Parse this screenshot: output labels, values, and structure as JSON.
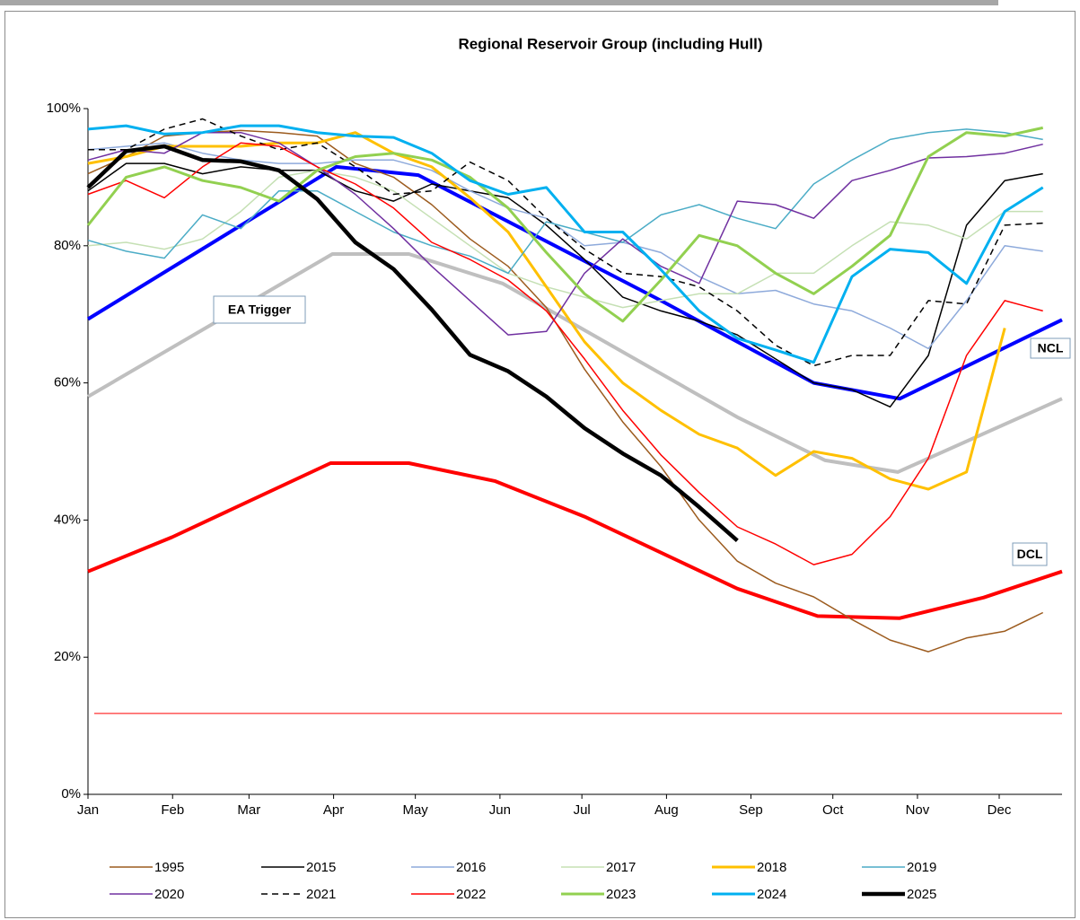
{
  "chart_data": {
    "type": "line",
    "title": "Regional Reservoir Group (including Hull)",
    "x": [
      0,
      2,
      4,
      6,
      8,
      10,
      12,
      14,
      16,
      18,
      20,
      22,
      24,
      26,
      28,
      30,
      32,
      34,
      36,
      38,
      40,
      42,
      44,
      46,
      48,
      50
    ],
    "xlim": [
      0,
      51
    ],
    "xticks": [
      {
        "value": 0,
        "label": "Jan"
      },
      {
        "value": 4.43,
        "label": "Feb"
      },
      {
        "value": 8.43,
        "label": "Mar"
      },
      {
        "value": 12.86,
        "label": "Apr"
      },
      {
        "value": 17.14,
        "label": "May"
      },
      {
        "value": 21.57,
        "label": "Jun"
      },
      {
        "value": 25.86,
        "label": "Jul"
      },
      {
        "value": 30.29,
        "label": "Aug"
      },
      {
        "value": 34.71,
        "label": "Sep"
      },
      {
        "value": 39,
        "label": "Oct"
      },
      {
        "value": 43.43,
        "label": "Nov"
      },
      {
        "value": 47.71,
        "label": "Dec"
      }
    ],
    "ylim": [
      0,
      100
    ],
    "yticks": [
      {
        "value": 0,
        "label": "0%"
      },
      {
        "value": 20,
        "label": "20%"
      },
      {
        "value": 40,
        "label": "40%"
      },
      {
        "value": 60,
        "label": "60%"
      },
      {
        "value": 80,
        "label": "80%"
      },
      {
        "value": 100,
        "label": "100%"
      }
    ],
    "grid": false,
    "series": [
      {
        "name": "1995",
        "color": "#9c5b1e",
        "width": 1.5,
        "values": [
          90.5,
          93,
          96,
          96.5,
          96.8,
          96.5,
          96,
          92,
          90,
          86,
          81,
          77,
          71,
          62,
          54.3,
          47.8,
          40,
          34,
          30.8,
          28.8,
          25.5,
          22.5,
          20.8,
          22.8,
          23.8,
          26.5
        ]
      },
      {
        "name": "2015",
        "color": "#000000",
        "width": 1.5,
        "values": [
          88,
          92,
          92,
          90.5,
          91.5,
          91,
          91,
          88,
          86.5,
          89,
          88,
          87,
          83,
          78,
          72.5,
          70.5,
          69,
          67,
          63.5,
          60,
          59,
          56.5,
          64,
          83,
          89.5,
          90.5
        ]
      },
      {
        "name": "2016",
        "color": "#8eaadb",
        "width": 1.5,
        "values": [
          94,
          94.5,
          95,
          93.5,
          92.5,
          92,
          92,
          92.5,
          92.5,
          91,
          88,
          85.5,
          84,
          80,
          80.5,
          79,
          75.5,
          73,
          73.5,
          71.5,
          70.5,
          68,
          65,
          72,
          80,
          79.2
        ]
      },
      {
        "name": "2017",
        "color": "#c5e0b4",
        "width": 1.5,
        "values": [
          80,
          80.5,
          79.5,
          81,
          85,
          90,
          91,
          90,
          88,
          84,
          80,
          76,
          74,
          72.5,
          71,
          72,
          73,
          73,
          76,
          76,
          80,
          83.5,
          83,
          81,
          85,
          85
        ]
      },
      {
        "name": "2018",
        "color": "#ffc000",
        "width": 3,
        "values": [
          92,
          93,
          94.5,
          94.5,
          94.5,
          95,
          95,
          96.5,
          93.5,
          91.5,
          87,
          82,
          74,
          66,
          60,
          56,
          52.5,
          50.5,
          46.5,
          50,
          49,
          46,
          44.5,
          47,
          68,
          null
        ]
      },
      {
        "name": "2019",
        "color": "#4bacc6",
        "width": 1.5,
        "values": [
          80.8,
          79.2,
          78.2,
          84.5,
          82.5,
          88,
          88,
          85,
          82,
          80,
          78.5,
          76,
          83.5,
          82,
          80.5,
          84.5,
          86,
          84,
          82.5,
          89,
          92.5,
          95.5,
          96.5,
          97,
          96.5,
          95.5
        ]
      },
      {
        "name": "2020",
        "color": "#7030a0",
        "width": 1.5,
        "values": [
          92.5,
          94,
          93.5,
          96.5,
          96.5,
          95,
          91.5,
          87.5,
          82.5,
          77,
          72,
          67,
          67.5,
          76,
          81,
          77,
          74.5,
          86.5,
          86,
          84,
          89.5,
          91,
          92.8,
          93,
          93.5,
          94.8
        ]
      },
      {
        "name": "2021",
        "color": "#000000",
        "width": 1.5,
        "dash": true,
        "values": [
          94,
          94,
          97,
          98.5,
          96,
          94,
          95,
          91.5,
          87.5,
          88,
          92.2,
          89.5,
          84,
          79.5,
          76,
          75.5,
          74,
          70.5,
          65.5,
          62.5,
          64,
          64,
          72,
          71.5,
          83,
          83.3
        ]
      },
      {
        "name": "2022",
        "color": "#ff0000",
        "width": 1.5,
        "values": [
          87.5,
          89.5,
          87,
          91.5,
          95,
          94.5,
          91.5,
          89,
          85.5,
          80.5,
          78,
          75,
          70.5,
          63.5,
          56,
          49.5,
          44,
          39,
          36.5,
          33.5,
          35,
          40.5,
          49,
          64,
          72,
          70.5
        ]
      },
      {
        "name": "2023",
        "color": "#92d050",
        "width": 3,
        "values": [
          83,
          90,
          91.5,
          89.5,
          88.5,
          86.5,
          91,
          93,
          93.5,
          92.5,
          90,
          85.5,
          79,
          73,
          69,
          75,
          81.5,
          80,
          76,
          73,
          77,
          81.5,
          93,
          96.5,
          96,
          97.2
        ]
      },
      {
        "name": "2024",
        "color": "#00b0f0",
        "width": 3,
        "values": [
          97,
          97.5,
          96.3,
          96.5,
          97.5,
          97.5,
          96.5,
          96,
          95.8,
          93.5,
          89.5,
          87.5,
          88.5,
          82,
          82,
          76.5,
          70.5,
          66.5,
          64.8,
          63,
          75.5,
          79.5,
          79,
          74.5,
          85,
          88.5
        ]
      },
      {
        "name": "2025",
        "color": "#000000",
        "width": 4.5,
        "values": [
          88.5,
          93.8,
          94.5,
          92.5,
          92.3,
          91,
          86.8,
          80.5,
          76.6,
          70.7,
          64.1,
          61.7,
          58,
          53.4,
          49.7,
          46.5,
          41.9,
          37,
          null,
          null,
          null,
          null,
          null,
          null,
          null,
          null
        ]
      }
    ],
    "curves": [
      {
        "name": "EA Trigger",
        "color": "#bfbfbf",
        "x": [
          0,
          12.8,
          16.8,
          21.7,
          34,
          38.6,
          42.4,
          51
        ],
        "values": [
          58,
          78.8,
          78.8,
          74.5,
          55,
          48.7,
          47,
          57.7
        ]
      },
      {
        "name": "NCL",
        "color": "#0000ff",
        "x": [
          0,
          13,
          17.3,
          30,
          38,
          42.5,
          51
        ],
        "values": [
          69.3,
          91.5,
          90.3,
          72,
          60,
          57.7,
          69.2
        ]
      },
      {
        "name": "DCL",
        "color": "#ff0000",
        "x": [
          0,
          4.4,
          12.7,
          16.8,
          21.3,
          26,
          34,
          38.2,
          42.5,
          46.9,
          51
        ],
        "values": [
          32.5,
          37.5,
          48.3,
          48.3,
          45.7,
          40.5,
          30,
          26,
          25.7,
          28.7,
          32.5
        ]
      }
    ],
    "hlines": [
      {
        "value": 11.8,
        "color": "#ff0000"
      }
    ]
  }
}
